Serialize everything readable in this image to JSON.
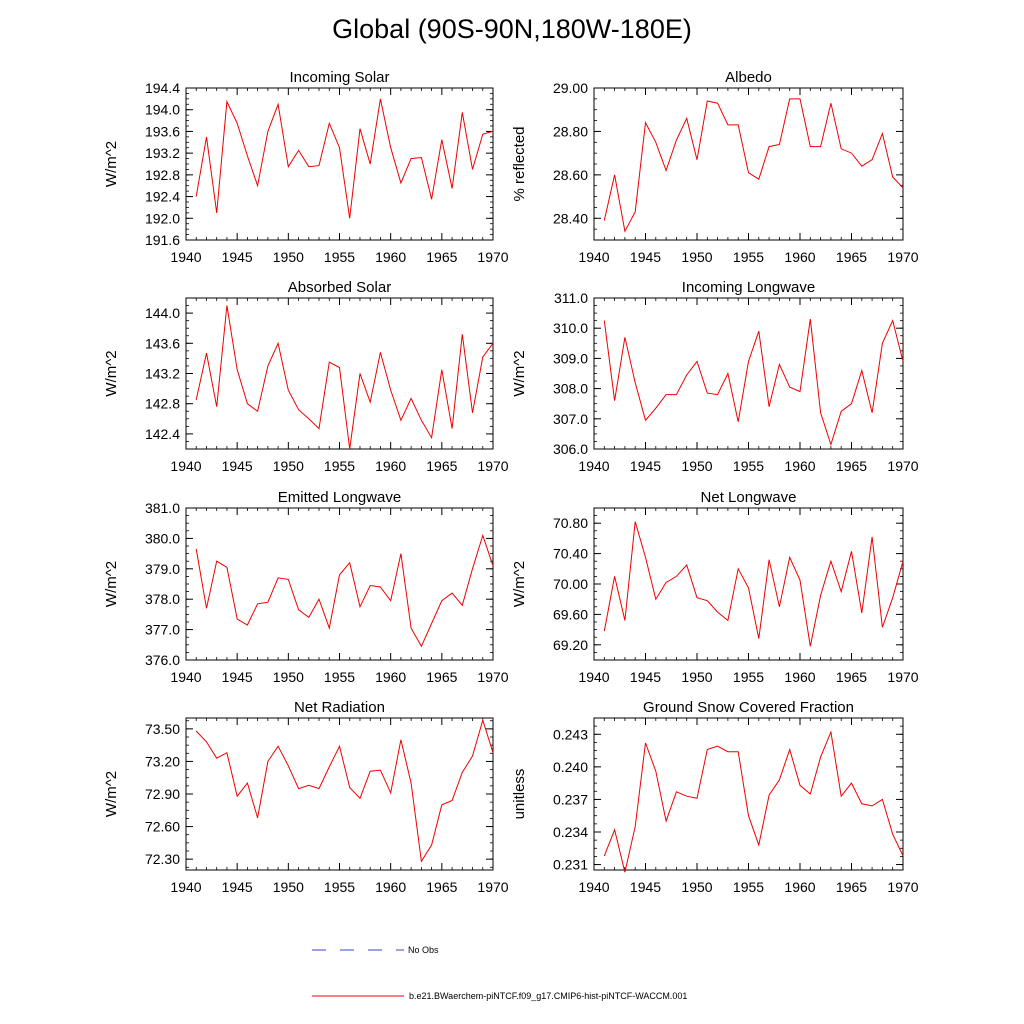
{
  "figure_title": "Global (90S-90N,180W-180E)",
  "legend": {
    "obs_label": "No Obs",
    "model_label": "b.e21.BWaerchem-piNTCF.f09_g17.CMIP6-hist-piNTCF-WACCM.001",
    "obs_color": "#3344cc",
    "model_color": "#ee0000"
  },
  "chart_data": [
    {
      "type": "line",
      "title": "Incoming Solar",
      "ylabel": "W/m^2",
      "xlim": [
        1940,
        1970
      ],
      "ylim": [
        191.6,
        194.4
      ],
      "yticks": [
        "191.6",
        "192.0",
        "192.4",
        "192.8",
        "193.2",
        "193.6",
        "194.0",
        "194.4"
      ],
      "xticks": [
        "1940",
        "1945",
        "1950",
        "1955",
        "1960",
        "1965",
        "1970"
      ],
      "series": [
        {
          "x": [
            1941,
            1942,
            1943,
            1944,
            1945,
            1946,
            1947,
            1948,
            1949,
            1950,
            1951,
            1952,
            1953,
            1954,
            1955,
            1956,
            1957,
            1958,
            1959,
            1960,
            1961,
            1962,
            1963,
            1964,
            1965,
            1966,
            1967,
            1968,
            1969,
            1970
          ],
          "values": [
            192.4,
            193.5,
            192.1,
            194.15,
            193.75,
            193.15,
            192.6,
            193.6,
            194.1,
            192.95,
            193.25,
            192.95,
            192.97,
            193.75,
            193.3,
            192.0,
            193.65,
            193.0,
            194.2,
            193.3,
            192.65,
            193.1,
            193.12,
            192.35,
            193.45,
            192.55,
            193.95,
            192.9,
            193.55,
            193.6
          ]
        }
      ]
    },
    {
      "type": "line",
      "title": "Albedo",
      "ylabel": "% reflected",
      "xlim": [
        1940,
        1970
      ],
      "ylim": [
        28.3,
        29.0
      ],
      "yticks": [
        "28.40",
        "28.60",
        "28.80",
        "29.00"
      ],
      "xticks": [
        "1940",
        "1945",
        "1950",
        "1955",
        "1960",
        "1965",
        "1970"
      ],
      "series": [
        {
          "x": [
            1941,
            1942,
            1943,
            1944,
            1945,
            1946,
            1947,
            1948,
            1949,
            1950,
            1951,
            1952,
            1953,
            1954,
            1955,
            1956,
            1957,
            1958,
            1959,
            1960,
            1961,
            1962,
            1963,
            1964,
            1965,
            1966,
            1967,
            1968,
            1969,
            1970
          ],
          "values": [
            28.39,
            28.6,
            28.34,
            28.43,
            28.84,
            28.75,
            28.62,
            28.76,
            28.86,
            28.67,
            28.94,
            28.93,
            28.83,
            28.83,
            28.61,
            28.58,
            28.73,
            28.74,
            28.95,
            28.95,
            28.73,
            28.73,
            28.93,
            28.72,
            28.7,
            28.64,
            28.67,
            28.79,
            28.59,
            28.54
          ]
        }
      ]
    },
    {
      "type": "line",
      "title": "Absorbed Solar",
      "ylabel": "W/m^2",
      "xlim": [
        1940,
        1970
      ],
      "ylim": [
        142.2,
        144.2
      ],
      "yticks": [
        "142.4",
        "142.8",
        "143.2",
        "143.6",
        "144.0"
      ],
      "xticks": [
        "1940",
        "1945",
        "1950",
        "1955",
        "1960",
        "1965",
        "1970"
      ],
      "series": [
        {
          "x": [
            1941,
            1942,
            1943,
            1944,
            1945,
            1946,
            1947,
            1948,
            1949,
            1950,
            1951,
            1952,
            1953,
            1954,
            1955,
            1956,
            1957,
            1958,
            1959,
            1960,
            1961,
            1962,
            1963,
            1964,
            1965,
            1966,
            1967,
            1968,
            1969,
            1970
          ],
          "values": [
            142.85,
            143.47,
            142.76,
            144.1,
            143.25,
            142.8,
            142.7,
            143.3,
            143.6,
            142.98,
            142.72,
            142.6,
            142.47,
            143.35,
            143.28,
            142.2,
            143.2,
            142.82,
            143.48,
            142.98,
            142.58,
            142.87,
            142.58,
            142.35,
            143.25,
            142.47,
            143.72,
            142.68,
            143.42,
            143.6
          ]
        }
      ]
    },
    {
      "type": "line",
      "title": "Incoming Longwave",
      "ylabel": "W/m^2",
      "xlim": [
        1940,
        1970
      ],
      "ylim": [
        306.0,
        311.0
      ],
      "yticks": [
        "306.0",
        "307.0",
        "308.0",
        "309.0",
        "310.0",
        "311.0"
      ],
      "xticks": [
        "1940",
        "1945",
        "1950",
        "1955",
        "1960",
        "1965",
        "1970"
      ],
      "series": [
        {
          "x": [
            1941,
            1942,
            1943,
            1944,
            1945,
            1946,
            1947,
            1948,
            1949,
            1950,
            1951,
            1952,
            1953,
            1954,
            1955,
            1956,
            1957,
            1958,
            1959,
            1960,
            1961,
            1962,
            1963,
            1964,
            1965,
            1966,
            1967,
            1968,
            1969,
            1970
          ],
          "values": [
            310.25,
            307.6,
            309.7,
            308.2,
            306.95,
            307.35,
            307.8,
            307.8,
            308.45,
            308.9,
            307.85,
            307.8,
            308.5,
            306.9,
            308.9,
            309.9,
            307.4,
            308.8,
            308.05,
            307.9,
            310.3,
            307.2,
            306.15,
            307.25,
            307.5,
            308.6,
            307.2,
            309.5,
            310.25,
            308.9
          ]
        }
      ]
    },
    {
      "type": "line",
      "title": "Emitted Longwave",
      "ylabel": "W/m^2",
      "xlim": [
        1940,
        1970
      ],
      "ylim": [
        376.0,
        381.0
      ],
      "yticks": [
        "376.0",
        "377.0",
        "378.0",
        "379.0",
        "380.0",
        "381.0"
      ],
      "xticks": [
        "1940",
        "1945",
        "1950",
        "1955",
        "1960",
        "1965",
        "1970"
      ],
      "series": [
        {
          "x": [
            1941,
            1942,
            1943,
            1944,
            1945,
            1946,
            1947,
            1948,
            1949,
            1950,
            1951,
            1952,
            1953,
            1954,
            1955,
            1956,
            1957,
            1958,
            1959,
            1960,
            1961,
            1962,
            1963,
            1964,
            1965,
            1966,
            1967,
            1968,
            1969,
            1970
          ],
          "values": [
            379.65,
            377.7,
            379.25,
            379.05,
            377.35,
            377.15,
            377.85,
            377.9,
            378.7,
            378.65,
            377.65,
            377.4,
            378.0,
            377.05,
            378.8,
            379.2,
            377.75,
            378.45,
            378.4,
            377.95,
            379.5,
            377.05,
            376.45,
            377.2,
            377.95,
            378.2,
            377.8,
            379.0,
            380.1,
            379.1
          ]
        }
      ]
    },
    {
      "type": "line",
      "title": "Net Longwave",
      "ylabel": "W/m^2",
      "xlim": [
        1940,
        1970
      ],
      "ylim": [
        69.0,
        71.0
      ],
      "yticks": [
        "69.20",
        "69.60",
        "70.00",
        "70.40",
        "70.80"
      ],
      "xticks": [
        "1940",
        "1945",
        "1950",
        "1955",
        "1960",
        "1965",
        "1970"
      ],
      "series": [
        {
          "x": [
            1941,
            1942,
            1943,
            1944,
            1945,
            1946,
            1947,
            1948,
            1949,
            1950,
            1951,
            1952,
            1953,
            1954,
            1955,
            1956,
            1957,
            1958,
            1959,
            1960,
            1961,
            1962,
            1963,
            1964,
            1965,
            1966,
            1967,
            1968,
            1969,
            1970
          ],
          "values": [
            69.38,
            70.1,
            69.52,
            70.82,
            70.35,
            69.8,
            70.02,
            70.1,
            70.25,
            69.82,
            69.78,
            69.63,
            69.52,
            70.2,
            69.95,
            69.28,
            70.32,
            69.7,
            70.35,
            70.05,
            69.18,
            69.85,
            70.3,
            69.9,
            70.43,
            69.62,
            70.62,
            69.43,
            69.82,
            70.3
          ]
        }
      ]
    },
    {
      "type": "line",
      "title": "Net Radiation",
      "ylabel": "W/m^2",
      "xlim": [
        1940,
        1970
      ],
      "ylim": [
        72.2,
        73.6
      ],
      "yticks": [
        "72.30",
        "72.60",
        "72.90",
        "73.20",
        "73.50"
      ],
      "xticks": [
        "1940",
        "1945",
        "1950",
        "1955",
        "1960",
        "1965",
        "1970"
      ],
      "series": [
        {
          "x": [
            1941,
            1942,
            1943,
            1944,
            1945,
            1946,
            1947,
            1948,
            1949,
            1950,
            1951,
            1952,
            1953,
            1954,
            1955,
            1956,
            1957,
            1958,
            1959,
            1960,
            1961,
            1962,
            1963,
            1964,
            1965,
            1966,
            1967,
            1968,
            1969,
            1970
          ],
          "values": [
            73.48,
            73.38,
            73.23,
            73.28,
            72.88,
            73.0,
            72.68,
            73.2,
            73.34,
            73.16,
            72.95,
            72.98,
            72.95,
            73.15,
            73.34,
            72.96,
            72.86,
            73.11,
            73.12,
            72.91,
            73.4,
            73.0,
            72.28,
            72.43,
            72.8,
            72.84,
            73.1,
            73.25,
            73.58,
            73.28
          ]
        }
      ]
    },
    {
      "type": "line",
      "title": "Ground Snow Covered Fraction",
      "ylabel": "unitless",
      "xlim": [
        1940,
        1970
      ],
      "ylim": [
        0.2305,
        0.2445
      ],
      "yticks": [
        "0.231",
        "0.234",
        "0.237",
        "0.240",
        "0.243"
      ],
      "xticks": [
        "1940",
        "1945",
        "1950",
        "1955",
        "1960",
        "1965",
        "1970"
      ],
      "series": [
        {
          "x": [
            1941,
            1942,
            1943,
            1944,
            1945,
            1946,
            1947,
            1948,
            1949,
            1950,
            1951,
            1952,
            1953,
            1954,
            1955,
            1956,
            1957,
            1958,
            1959,
            1960,
            1961,
            1962,
            1963,
            1964,
            1965,
            1966,
            1967,
            1968,
            1969,
            1970
          ],
          "values": [
            0.2318,
            0.2342,
            0.2303,
            0.2345,
            0.2422,
            0.2396,
            0.235,
            0.2377,
            0.2373,
            0.2371,
            0.2416,
            0.2419,
            0.2414,
            0.2414,
            0.2355,
            0.2328,
            0.2374,
            0.2388,
            0.2416,
            0.2383,
            0.2375,
            0.2409,
            0.2432,
            0.2373,
            0.2385,
            0.2366,
            0.2364,
            0.237,
            0.2338,
            0.2318
          ]
        }
      ]
    }
  ]
}
